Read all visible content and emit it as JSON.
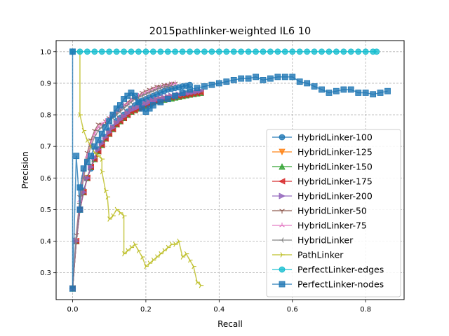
{
  "chart_data": {
    "type": "line",
    "title": "2015pathlinker-weighted IL6 10",
    "xlabel": "Recall",
    "ylabel": "Precision",
    "xlim": [
      -0.045,
      0.905
    ],
    "ylim": [
      0.215,
      1.035
    ],
    "xticks": [
      0.0,
      0.2,
      0.4,
      0.6,
      0.8
    ],
    "xtick_labels": [
      "0.0",
      "0.2",
      "0.4",
      "0.6",
      "0.8"
    ],
    "yticks": [
      0.3,
      0.4,
      0.5,
      0.6,
      0.7,
      0.8,
      0.9,
      1.0
    ],
    "ytick_labels": [
      "0.3",
      "0.4",
      "0.5",
      "0.6",
      "0.7",
      "0.8",
      "0.9",
      "1.0"
    ],
    "grid": true,
    "legend_position": "lower-right",
    "series": [
      {
        "name": "HybridLinker-100",
        "color": "#1f77b4",
        "marker": "circle",
        "x": [
          0.0,
          0.01,
          0.02,
          0.03,
          0.04,
          0.05,
          0.06,
          0.07,
          0.08,
          0.09,
          0.1,
          0.11,
          0.12,
          0.13,
          0.14,
          0.15,
          0.16,
          0.17,
          0.18,
          0.19,
          0.2,
          0.21,
          0.22,
          0.23,
          0.24,
          0.25,
          0.26,
          0.27,
          0.28,
          0.29,
          0.3,
          0.31,
          0.32
        ],
        "y": [
          0.25,
          0.4,
          0.5,
          0.56,
          0.6,
          0.63,
          0.66,
          0.69,
          0.71,
          0.73,
          0.75,
          0.76,
          0.78,
          0.79,
          0.8,
          0.81,
          0.82,
          0.83,
          0.84,
          0.845,
          0.85,
          0.855,
          0.86,
          0.865,
          0.87,
          0.875,
          0.88,
          0.882,
          0.885,
          0.887,
          0.89,
          0.892,
          0.895
        ]
      },
      {
        "name": "HybridLinker-125",
        "color": "#ff7f0e",
        "marker": "triangle-down",
        "x": [
          0.0,
          0.01,
          0.02,
          0.03,
          0.04,
          0.05,
          0.06,
          0.07,
          0.08,
          0.09,
          0.1,
          0.11,
          0.12,
          0.13,
          0.14,
          0.15,
          0.16,
          0.17,
          0.18,
          0.19,
          0.2,
          0.21,
          0.22,
          0.23,
          0.24,
          0.25,
          0.26,
          0.27,
          0.28,
          0.29,
          0.3,
          0.31,
          0.32,
          0.33,
          0.34
        ],
        "y": [
          0.25,
          0.4,
          0.5,
          0.555,
          0.6,
          0.635,
          0.66,
          0.685,
          0.705,
          0.725,
          0.74,
          0.755,
          0.77,
          0.78,
          0.79,
          0.8,
          0.81,
          0.815,
          0.82,
          0.825,
          0.83,
          0.835,
          0.84,
          0.845,
          0.848,
          0.85,
          0.853,
          0.855,
          0.858,
          0.86,
          0.862,
          0.864,
          0.866,
          0.868,
          0.87
        ]
      },
      {
        "name": "HybridLinker-150",
        "color": "#2ca02c",
        "marker": "triangle-up",
        "x": [
          0.0,
          0.01,
          0.02,
          0.03,
          0.04,
          0.05,
          0.06,
          0.07,
          0.08,
          0.09,
          0.1,
          0.11,
          0.12,
          0.13,
          0.14,
          0.15,
          0.16,
          0.17,
          0.18,
          0.19,
          0.2,
          0.21,
          0.22,
          0.23,
          0.24,
          0.25,
          0.26,
          0.27,
          0.28,
          0.29,
          0.3,
          0.31,
          0.32,
          0.33,
          0.34,
          0.35
        ],
        "y": [
          0.25,
          0.4,
          0.5,
          0.555,
          0.6,
          0.635,
          0.66,
          0.685,
          0.705,
          0.725,
          0.74,
          0.755,
          0.77,
          0.78,
          0.79,
          0.8,
          0.81,
          0.815,
          0.82,
          0.825,
          0.83,
          0.835,
          0.84,
          0.843,
          0.845,
          0.848,
          0.85,
          0.852,
          0.855,
          0.857,
          0.86,
          0.862,
          0.864,
          0.866,
          0.868,
          0.87
        ]
      },
      {
        "name": "HybridLinker-175",
        "color": "#d62728",
        "marker": "triangle-left",
        "x": [
          0.0,
          0.01,
          0.02,
          0.03,
          0.04,
          0.05,
          0.06,
          0.07,
          0.08,
          0.09,
          0.1,
          0.11,
          0.12,
          0.13,
          0.14,
          0.15,
          0.16,
          0.17,
          0.18,
          0.19,
          0.2,
          0.21,
          0.22,
          0.23,
          0.24,
          0.25,
          0.26,
          0.27,
          0.28,
          0.29,
          0.3,
          0.31,
          0.32,
          0.33,
          0.34,
          0.35
        ],
        "y": [
          0.25,
          0.4,
          0.5,
          0.555,
          0.6,
          0.635,
          0.66,
          0.685,
          0.705,
          0.725,
          0.74,
          0.755,
          0.77,
          0.78,
          0.79,
          0.8,
          0.81,
          0.815,
          0.82,
          0.825,
          0.83,
          0.835,
          0.84,
          0.843,
          0.846,
          0.849,
          0.852,
          0.855,
          0.857,
          0.859,
          0.861,
          0.863,
          0.865,
          0.867,
          0.869,
          0.871
        ]
      },
      {
        "name": "HybridLinker-200",
        "color": "#9467bd",
        "marker": "triangle-right",
        "x": [
          0.0,
          0.01,
          0.02,
          0.03,
          0.04,
          0.05,
          0.06,
          0.07,
          0.08,
          0.09,
          0.1,
          0.11,
          0.12,
          0.13,
          0.14,
          0.15,
          0.16,
          0.17,
          0.18,
          0.19,
          0.2,
          0.21,
          0.22,
          0.23,
          0.24,
          0.25,
          0.26,
          0.27,
          0.28,
          0.29,
          0.3,
          0.31,
          0.32,
          0.33,
          0.34,
          0.35
        ],
        "y": [
          0.25,
          0.4,
          0.5,
          0.555,
          0.6,
          0.635,
          0.665,
          0.69,
          0.71,
          0.73,
          0.745,
          0.76,
          0.775,
          0.785,
          0.795,
          0.805,
          0.815,
          0.82,
          0.825,
          0.83,
          0.835,
          0.84,
          0.845,
          0.848,
          0.851,
          0.854,
          0.857,
          0.86,
          0.862,
          0.864,
          0.866,
          0.868,
          0.87,
          0.872,
          0.874,
          0.876
        ]
      },
      {
        "name": "HybridLinker-50",
        "color": "#8c564b",
        "marker": "tri-down",
        "x": [
          0.0,
          0.01,
          0.02,
          0.03,
          0.04,
          0.05,
          0.06,
          0.07,
          0.08,
          0.09,
          0.1,
          0.11,
          0.12,
          0.13,
          0.14,
          0.15,
          0.16,
          0.17,
          0.18,
          0.19,
          0.2,
          0.21,
          0.22,
          0.23,
          0.24,
          0.25,
          0.26,
          0.27,
          0.28
        ],
        "y": [
          0.25,
          0.42,
          0.54,
          0.62,
          0.68,
          0.72,
          0.75,
          0.77,
          0.77,
          0.78,
          0.79,
          0.8,
          0.81,
          0.82,
          0.83,
          0.84,
          0.85,
          0.855,
          0.86,
          0.87,
          0.875,
          0.88,
          0.885,
          0.89,
          0.89,
          0.895,
          0.895,
          0.9,
          0.9
        ]
      },
      {
        "name": "HybridLinker-75",
        "color": "#e377c2",
        "marker": "tri-up",
        "x": [
          0.0,
          0.01,
          0.02,
          0.03,
          0.04,
          0.05,
          0.06,
          0.07,
          0.08,
          0.09,
          0.1,
          0.11,
          0.12,
          0.13,
          0.14,
          0.15,
          0.16,
          0.17,
          0.18,
          0.19,
          0.2,
          0.21,
          0.22,
          0.23,
          0.24,
          0.25,
          0.26,
          0.27,
          0.28
        ],
        "y": [
          0.25,
          0.41,
          0.53,
          0.61,
          0.67,
          0.71,
          0.74,
          0.76,
          0.77,
          0.78,
          0.79,
          0.8,
          0.81,
          0.82,
          0.83,
          0.835,
          0.845,
          0.85,
          0.86,
          0.865,
          0.87,
          0.875,
          0.88,
          0.885,
          0.888,
          0.89,
          0.893,
          0.896,
          0.9
        ]
      },
      {
        "name": "HybridLinker",
        "color": "#7f7f7f",
        "marker": "tri-left",
        "x": [
          0.0,
          0.01,
          0.02,
          0.03,
          0.04,
          0.05,
          0.06,
          0.07,
          0.08,
          0.09,
          0.1,
          0.11,
          0.12,
          0.13,
          0.14,
          0.15,
          0.16,
          0.17,
          0.18,
          0.19,
          0.2,
          0.21,
          0.22,
          0.23,
          0.24,
          0.25,
          0.26,
          0.27
        ],
        "y": [
          0.25,
          0.41,
          0.52,
          0.6,
          0.66,
          0.7,
          0.73,
          0.75,
          0.76,
          0.77,
          0.78,
          0.79,
          0.8,
          0.81,
          0.82,
          0.83,
          0.84,
          0.85,
          0.855,
          0.86,
          0.865,
          0.87,
          0.875,
          0.88,
          0.885,
          0.888,
          0.89,
          0.892
        ]
      },
      {
        "name": "PathLinker",
        "color": "#bcbd22",
        "marker": "tri-right",
        "x": [
          0.0,
          0.02,
          0.02,
          0.03,
          0.04,
          0.05,
          0.06,
          0.07,
          0.08,
          0.08,
          0.09,
          0.095,
          0.1,
          0.11,
          0.12,
          0.13,
          0.14,
          0.14,
          0.15,
          0.16,
          0.17,
          0.18,
          0.19,
          0.2,
          0.21,
          0.22,
          0.23,
          0.24,
          0.25,
          0.26,
          0.27,
          0.28,
          0.29,
          0.3,
          0.31,
          0.32,
          0.33,
          0.34,
          0.35
        ],
        "y": [
          1.0,
          1.0,
          0.8,
          0.75,
          0.72,
          0.7,
          0.68,
          0.67,
          0.66,
          0.62,
          0.56,
          0.54,
          0.47,
          0.48,
          0.5,
          0.49,
          0.48,
          0.36,
          0.37,
          0.38,
          0.39,
          0.37,
          0.35,
          0.32,
          0.33,
          0.34,
          0.35,
          0.36,
          0.37,
          0.38,
          0.39,
          0.39,
          0.4,
          0.35,
          0.36,
          0.34,
          0.32,
          0.27,
          0.26
        ]
      },
      {
        "name": "PerfectLinker-edges",
        "color": "#17becf",
        "marker": "circle",
        "x": [
          0.0,
          0.02,
          0.04,
          0.06,
          0.08,
          0.1,
          0.12,
          0.14,
          0.16,
          0.18,
          0.2,
          0.22,
          0.24,
          0.26,
          0.28,
          0.3,
          0.32,
          0.34,
          0.36,
          0.38,
          0.4,
          0.42,
          0.44,
          0.46,
          0.48,
          0.5,
          0.52,
          0.54,
          0.56,
          0.58,
          0.6,
          0.62,
          0.64,
          0.66,
          0.68,
          0.7,
          0.72,
          0.74,
          0.76,
          0.78,
          0.8,
          0.82,
          0.83
        ],
        "y": [
          1.0,
          1.0,
          1.0,
          1.0,
          1.0,
          1.0,
          1.0,
          1.0,
          1.0,
          1.0,
          1.0,
          1.0,
          1.0,
          1.0,
          1.0,
          1.0,
          1.0,
          1.0,
          1.0,
          1.0,
          1.0,
          1.0,
          1.0,
          1.0,
          1.0,
          1.0,
          1.0,
          1.0,
          1.0,
          1.0,
          1.0,
          1.0,
          1.0,
          1.0,
          1.0,
          1.0,
          1.0,
          1.0,
          1.0,
          1.0,
          1.0,
          1.0,
          1.0
        ]
      },
      {
        "name": "PerfectLinker-nodes",
        "color": "#1f77b4",
        "marker": "square",
        "x": [
          0.0,
          0.0,
          0.01,
          0.02,
          0.02,
          0.03,
          0.04,
          0.05,
          0.06,
          0.07,
          0.08,
          0.09,
          0.1,
          0.11,
          0.12,
          0.13,
          0.14,
          0.15,
          0.16,
          0.17,
          0.18,
          0.19,
          0.2,
          0.21,
          0.22,
          0.24,
          0.26,
          0.28,
          0.3,
          0.32,
          0.34,
          0.36,
          0.38,
          0.4,
          0.42,
          0.44,
          0.46,
          0.48,
          0.5,
          0.52,
          0.54,
          0.56,
          0.58,
          0.6,
          0.62,
          0.64,
          0.66,
          0.68,
          0.7,
          0.72,
          0.74,
          0.76,
          0.78,
          0.8,
          0.82,
          0.84,
          0.86
        ],
        "y": [
          1.0,
          0.25,
          0.67,
          0.5,
          0.57,
          0.63,
          0.65,
          0.67,
          0.7,
          0.72,
          0.74,
          0.76,
          0.78,
          0.8,
          0.82,
          0.83,
          0.85,
          0.86,
          0.87,
          0.86,
          0.84,
          0.82,
          0.81,
          0.82,
          0.83,
          0.84,
          0.85,
          0.86,
          0.87,
          0.88,
          0.885,
          0.89,
          0.895,
          0.9,
          0.905,
          0.91,
          0.915,
          0.915,
          0.92,
          0.91,
          0.915,
          0.92,
          0.92,
          0.92,
          0.905,
          0.9,
          0.89,
          0.88,
          0.87,
          0.875,
          0.88,
          0.88,
          0.87,
          0.87,
          0.865,
          0.87,
          0.875
        ]
      }
    ]
  }
}
